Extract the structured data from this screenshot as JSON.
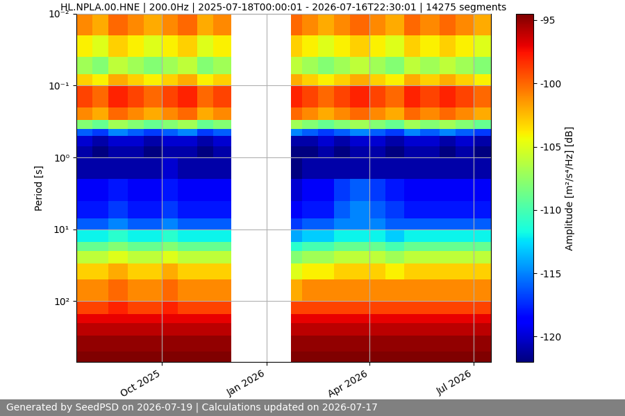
{
  "chart_data": {
    "type": "heatmap",
    "title": "HL.NPLA.00.HNE | 200.0Hz | 2025-07-18T00:00:01 - 2026-07-16T22:30:01 | 14275 segments",
    "y_label": "Period [s]",
    "footer": "Generated by SeedPSD on 2026-07-19 | Calculations updated on 2026-07-17",
    "log": "y",
    "grid": true,
    "xlim": [
      "2025-07-18",
      "2026-07-16"
    ],
    "xticks": [
      {
        "value": "2025-10-01",
        "label": "Oct 2025"
      },
      {
        "value": "2026-01-01",
        "label": "Jan 2026"
      },
      {
        "value": "2026-04-01",
        "label": "Apr 2026"
      },
      {
        "value": "2026-07-01",
        "label": "Jul 2026"
      }
    ],
    "ylim": [
      0.01,
      700
    ],
    "yticks": [
      {
        "value": 0.01,
        "label": "10⁻²"
      },
      {
        "value": 0.1,
        "label": "10⁻¹"
      },
      {
        "value": 1,
        "label": "10⁰"
      },
      {
        "value": 10,
        "label": "10¹"
      },
      {
        "value": 100,
        "label": "10²"
      }
    ],
    "x_edges": [
      "2025-07-18",
      "2025-08-01",
      "2025-08-15",
      "2025-09-01",
      "2025-09-15",
      "2025-10-01",
      "2025-10-15",
      "2025-11-01",
      "2025-11-15",
      "2025-12-01",
      "2026-01-22",
      "2026-02-01",
      "2026-02-15",
      "2026-03-01",
      "2026-03-15",
      "2026-04-01",
      "2026-04-15",
      "2026-05-01",
      "2026-05-15",
      "2026-06-01",
      "2026-06-15",
      "2026-07-01",
      "2026-07-16"
    ],
    "y_edges": [
      0.01,
      0.02,
      0.04,
      0.07,
      0.1,
      0.2,
      0.3,
      0.4,
      0.5,
      0.7,
      1,
      2,
      4,
      7,
      10,
      15,
      20,
      30,
      50,
      100,
      150,
      200,
      300,
      500,
      700
    ],
    "cells": [
      [
        -101,
        -102,
        -100,
        -101,
        -102,
        -101,
        -100,
        -102,
        -101,
        null,
        -100,
        -101,
        -102,
        -101,
        -100,
        -101,
        -102,
        -100,
        -101,
        -100,
        -101,
        -102
      ],
      [
        -104,
        -105,
        -103,
        -104,
        -105,
        -104,
        -103,
        -105,
        -104,
        null,
        -103,
        -104,
        -105,
        -104,
        -103,
        -104,
        -105,
        -103,
        -104,
        -103,
        -104,
        -105
      ],
      [
        -107,
        -108,
        -106,
        -107,
        -108,
        -107,
        -106,
        -108,
        -107,
        null,
        -106,
        -107,
        -108,
        -107,
        -106,
        -107,
        -108,
        -106,
        -107,
        -106,
        -107,
        -108
      ],
      [
        -103,
        -104,
        -102,
        -103,
        -104,
        -103,
        -102,
        -104,
        -103,
        null,
        -102,
        -103,
        -104,
        -103,
        -102,
        -103,
        -104,
        -102,
        -103,
        -102,
        -103,
        -104
      ],
      [
        -99,
        -100,
        -98,
        -99,
        -100,
        -99,
        -98,
        -100,
        -99,
        null,
        -98,
        -99,
        -100,
        -99,
        -98,
        -99,
        -100,
        -98,
        -99,
        -98,
        -99,
        -100
      ],
      [
        -101,
        -102,
        -100,
        -101,
        -102,
        -101,
        -100,
        -102,
        -101,
        null,
        -100,
        -101,
        -102,
        -101,
        -100,
        -101,
        -102,
        -100,
        -101,
        -100,
        -101,
        -102
      ],
      [
        -108,
        -109,
        -107,
        -108,
        -109,
        -108,
        -107,
        -109,
        -108,
        null,
        -107,
        -108,
        -109,
        -108,
        -107,
        -108,
        -109,
        -107,
        -108,
        -107,
        -108,
        -109
      ],
      [
        -116,
        -117,
        -115,
        -116,
        -117,
        -116,
        -115,
        -117,
        -116,
        null,
        -115,
        -116,
        -117,
        -116,
        -115,
        -116,
        -117,
        -115,
        -116,
        -115,
        -116,
        -117
      ],
      [
        -120,
        -121,
        -120,
        -120,
        -121,
        -120,
        -120,
        -121,
        -120,
        null,
        -121,
        -121,
        -120,
        -121,
        -120,
        -120,
        -121,
        -120,
        -120,
        -121,
        -120,
        -121
      ],
      [
        -121,
        -122,
        -121,
        -121,
        -122,
        -121,
        -121,
        -122,
        -121,
        null,
        -122,
        -122,
        -121,
        -122,
        -121,
        -121,
        -122,
        -121,
        -121,
        -122,
        -121,
        -122
      ],
      [
        -121,
        -121,
        -121,
        -121,
        -121,
        -120,
        -121,
        -121,
        -121,
        null,
        -122,
        -121,
        -121,
        -121,
        -121,
        -121,
        -121,
        -121,
        -121,
        -121,
        -121,
        -121
      ],
      [
        -119,
        -119,
        -118,
        -119,
        -119,
        -118,
        -119,
        -119,
        -119,
        null,
        -120,
        -119,
        -119,
        -117,
        -116,
        -117,
        -118,
        -119,
        -119,
        -119,
        -119,
        -119
      ],
      [
        -118,
        -118,
        -117,
        -118,
        -118,
        -117,
        -118,
        -118,
        -118,
        null,
        -119,
        -118,
        -118,
        -116,
        -115,
        -116,
        -117,
        -118,
        -118,
        -118,
        -118,
        -118
      ],
      [
        -116,
        -116,
        -115,
        -116,
        -116,
        -115,
        -116,
        -116,
        -116,
        null,
        -117,
        -116,
        -116,
        -115,
        -115,
        -115,
        -116,
        -116,
        -116,
        -116,
        -116,
        -116
      ],
      [
        -112,
        -112,
        -111,
        -112,
        -112,
        -111,
        -112,
        -112,
        -112,
        null,
        -114,
        -113,
        -113,
        -112,
        -112,
        -112,
        -113,
        -112,
        -112,
        -112,
        -112,
        -112
      ],
      [
        -109,
        -109,
        -108,
        -109,
        -109,
        -108,
        -109,
        -109,
        -109,
        null,
        -111,
        -110,
        -110,
        -109,
        -109,
        -109,
        -110,
        -109,
        -109,
        -109,
        -109,
        -109
      ],
      [
        -106,
        -106,
        -105,
        -106,
        -106,
        -105,
        -106,
        -106,
        -106,
        null,
        -108,
        -107,
        -107,
        -106,
        -106,
        -106,
        -107,
        -106,
        -106,
        -106,
        -106,
        -106
      ],
      [
        -103,
        -103,
        -102,
        -103,
        -103,
        -102,
        -103,
        -103,
        -103,
        null,
        -105,
        -104,
        -104,
        -103,
        -103,
        -103,
        -104,
        -103,
        -103,
        -103,
        -103,
        -103
      ],
      [
        -101,
        -101,
        -100,
        -101,
        -101,
        -100,
        -101,
        -101,
        -101,
        null,
        -102,
        -101,
        -101,
        -101,
        -101,
        -101,
        -101,
        -101,
        -101,
        -101,
        -101,
        -101
      ],
      [
        -99,
        -99,
        -98,
        -99,
        -99,
        -98,
        -99,
        -99,
        -99,
        null,
        -99,
        -99,
        -99,
        -99,
        -99,
        -99,
        -99,
        -99,
        -99,
        -99,
        -99,
        -99
      ],
      [
        -97,
        -97,
        -97,
        -97,
        -97,
        -97,
        -97,
        -97,
        -97,
        null,
        -97,
        -97,
        -97,
        -97,
        -97,
        -97,
        -97,
        -97,
        -97,
        -97,
        -97,
        -97
      ],
      [
        -96,
        -96,
        -96,
        -96,
        -96,
        -96,
        -96,
        -96,
        -96,
        null,
        -96,
        -96,
        -96,
        -96,
        -96,
        -96,
        -96,
        -96,
        -96,
        -96,
        -96,
        -96
      ],
      [
        -95,
        -95,
        -95,
        -95,
        -95,
        -95,
        -95,
        -95,
        -95,
        null,
        -95,
        -95,
        -95,
        -95,
        -95,
        -95,
        -95,
        -95,
        -95,
        -95,
        -95,
        -95
      ],
      [
        -94.5,
        -94.5,
        -94.5,
        -94.5,
        -94.5,
        -94.5,
        -94.5,
        -94.5,
        -94.5,
        null,
        -94.5,
        -94.5,
        -94.5,
        -94.5,
        -94.5,
        -94.5,
        -94.5,
        -94.5,
        -94.5,
        -94.5,
        -94.5,
        -94.5
      ]
    ],
    "colorbar": {
      "label": "Amplitude [m²/s⁴/Hz] [dB]",
      "lim": [
        -122,
        -94.5
      ],
      "ticks": [
        -95,
        -100,
        -105,
        -110,
        -115,
        -120
      ]
    }
  }
}
